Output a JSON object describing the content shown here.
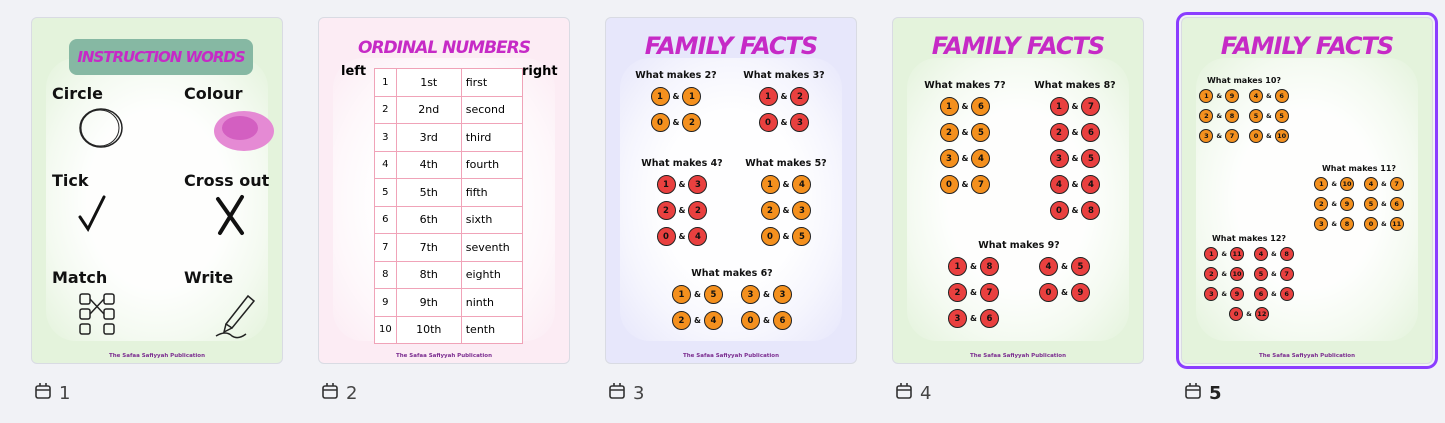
{
  "pages": [
    {
      "number": 1,
      "title": "INSTRUCTION WORDS",
      "words": [
        "Circle",
        "Colour",
        "Tick",
        "Cross out",
        "Match",
        "Write"
      ],
      "footer": "The Safaa Safiyyah Publication"
    },
    {
      "number": 2,
      "title": "ORDINAL NUMBERS",
      "left": "left",
      "right": "right",
      "rows": [
        [
          1,
          "1st",
          "first"
        ],
        [
          2,
          "2nd",
          "second"
        ],
        [
          3,
          "3rd",
          "third"
        ],
        [
          4,
          "4th",
          "fourth"
        ],
        [
          5,
          "5th",
          "fifth"
        ],
        [
          6,
          "6th",
          "sixth"
        ],
        [
          7,
          "7th",
          "seventh"
        ],
        [
          8,
          "8th",
          "eighth"
        ],
        [
          9,
          "9th",
          "ninth"
        ],
        [
          10,
          "10th",
          "tenth"
        ]
      ],
      "footer": "The Safaa Safiyyah Publication"
    },
    {
      "number": 3,
      "title": "FAMILY FACTS",
      "joiner": "&",
      "sections": [
        {
          "title": "What makes 2?",
          "fruit": "orange",
          "pairs": [
            [
              1,
              1
            ],
            [
              0,
              2
            ]
          ]
        },
        {
          "title": "What makes 3?",
          "fruit": "apple",
          "pairs": [
            [
              1,
              2
            ],
            [
              0,
              3
            ]
          ]
        },
        {
          "title": "What makes 4?",
          "fruit": "apple",
          "pairs": [
            [
              1,
              3
            ],
            [
              2,
              2
            ],
            [
              0,
              4
            ]
          ]
        },
        {
          "title": "What makes 5?",
          "fruit": "orange",
          "pairs": [
            [
              1,
              4
            ],
            [
              2,
              3
            ],
            [
              0,
              5
            ]
          ]
        },
        {
          "title": "What makes 6?",
          "fruit": "orange",
          "pairs": [
            [
              1,
              5
            ],
            [
              3,
              3
            ],
            [
              2,
              4
            ],
            [
              0,
              6
            ]
          ]
        }
      ],
      "footer": "The Safaa Safiyyah Publication"
    },
    {
      "number": 4,
      "title": "FAMILY FACTS",
      "joiner": "&",
      "sections": [
        {
          "title": "What makes 7?",
          "fruit": "orange",
          "pairs": [
            [
              1,
              6
            ],
            [
              2,
              5
            ],
            [
              3,
              4
            ],
            [
              0,
              7
            ]
          ]
        },
        {
          "title": "What makes 8?",
          "fruit": "apple",
          "pairs": [
            [
              1,
              7
            ],
            [
              2,
              6
            ],
            [
              3,
              5
            ],
            [
              4,
              4
            ],
            [
              0,
              8
            ]
          ]
        },
        {
          "title": "What makes 9?",
          "fruit": "apple",
          "pairs": [
            [
              1,
              8
            ],
            [
              2,
              7
            ],
            [
              3,
              6
            ],
            [
              4,
              5
            ],
            [
              0,
              9
            ]
          ]
        }
      ],
      "footer": "The Safaa Safiyyah Publication"
    },
    {
      "number": 5,
      "title": "FAMILY FACTS",
      "joiner": "&",
      "selected": true,
      "sections": [
        {
          "title": "What makes 10?",
          "fruit": "orange",
          "pairs": [
            [
              1,
              9
            ],
            [
              4,
              6
            ],
            [
              2,
              8
            ],
            [
              5,
              5
            ],
            [
              3,
              7
            ],
            [
              0,
              10
            ]
          ]
        },
        {
          "title": "What makes 11?",
          "fruit": "orange",
          "pairs": [
            [
              1,
              10
            ],
            [
              4,
              7
            ],
            [
              2,
              9
            ],
            [
              5,
              6
            ],
            [
              3,
              8
            ],
            [
              0,
              11
            ]
          ]
        },
        {
          "title": "What makes 12?",
          "fruit": "apple",
          "pairs": [
            [
              1,
              11
            ],
            [
              4,
              8
            ],
            [
              2,
              10
            ],
            [
              5,
              7
            ],
            [
              3,
              9
            ],
            [
              6,
              6
            ],
            [
              0,
              12
            ]
          ]
        }
      ],
      "footer": "The Safaa Safiyyah Publication"
    }
  ]
}
